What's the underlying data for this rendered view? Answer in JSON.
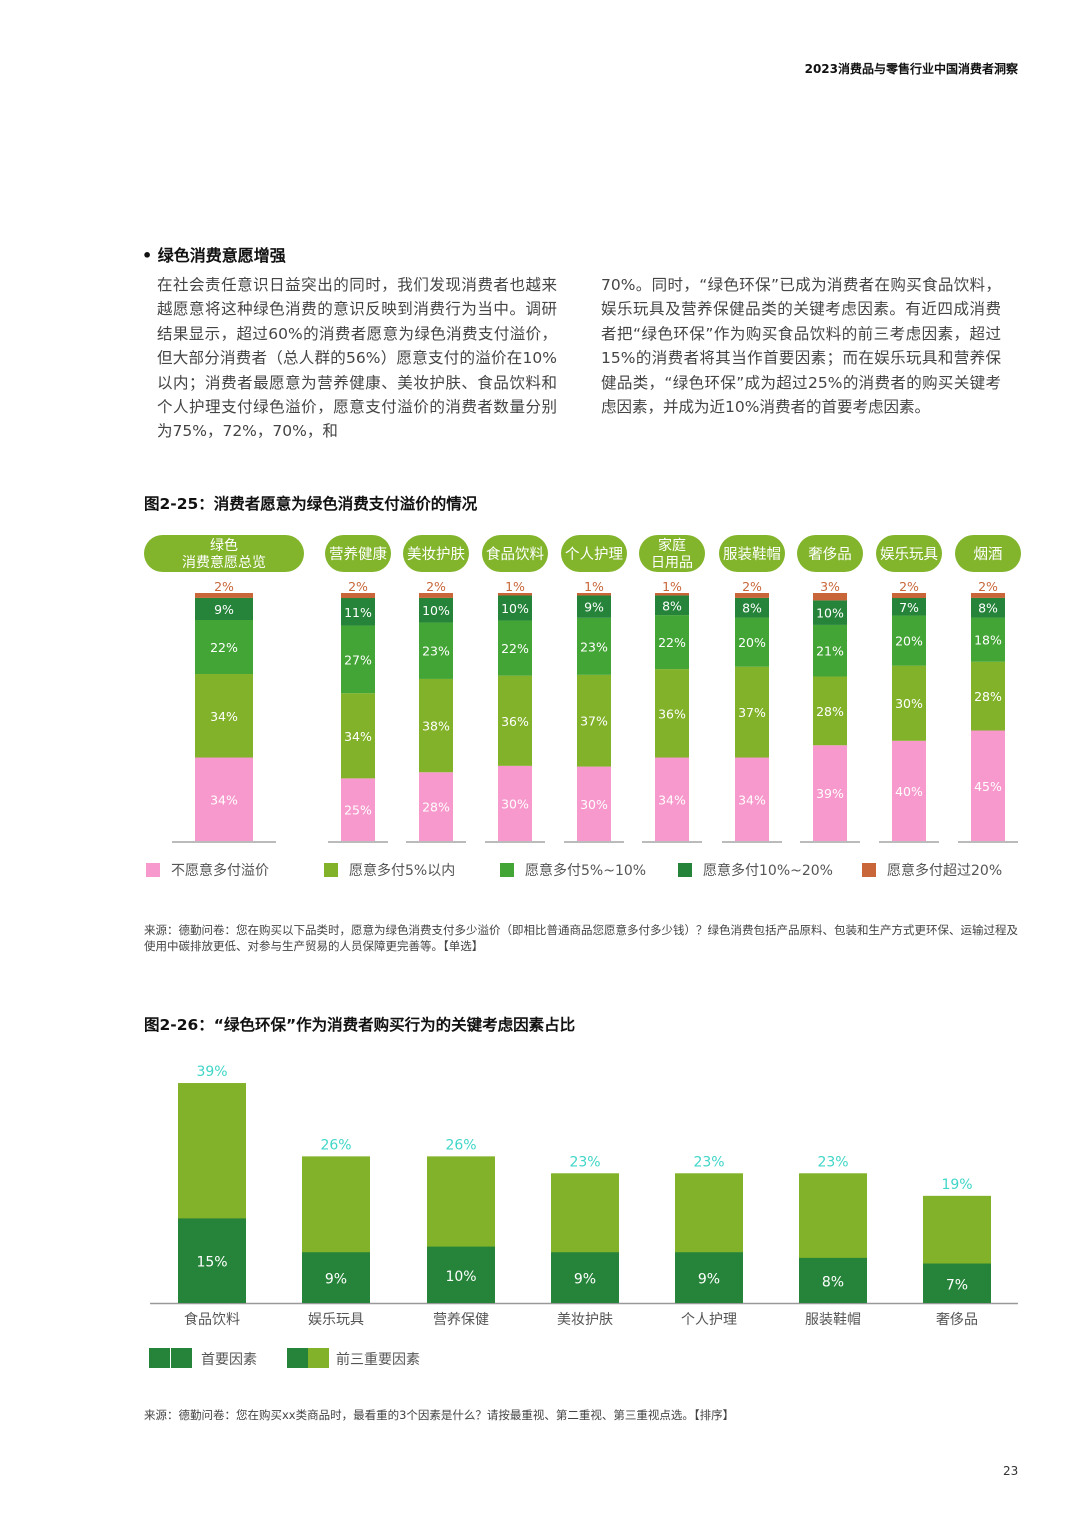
{
  "header": "2023消费品与零售行业中国消费者洞察",
  "section_title": "• 绿色消费意愿增强",
  "paragraph_left": "在社会责任意识日益突出的同时，我们发现消费者也越来越愿意将这种绿色消费的意识反映到消费行为当中。调研结果显示，超过60%的消费者愿意为绿色消费支付溢价，但大部分消费者（总人群的56%）愿意支付的溢价在10%以内；消费者最愿意为营养健康、美妆护肤、食品饮料和个人护理支付绿色溢价，愿意支付溢价的消费者数量分别为75%，72%，70%，和",
  "paragraph_right": "70%。同时，“绿色环保”已成为消费者在购买食品饮料，娱乐玩具及营养保健品类的关键考虑因素。有近四成消费者把“绿色环保”作为购买食品饮料的前三考虑因素，超过15%的消费者将其当作首要因素；而在娱乐玩具和营养保健品类，“绿色环保”成为超过25%的消费者的购买关键考虑因素，并成为近10%消费者的首要考虑因素。",
  "figure1_title": "图2-25：消费者愿意为绿色消费支付溢价的情况",
  "figure1_source": "来源：德勤问卷：您在购买以下品类时，愿意为绿色消费支付多少溢价（即相比普通商品您愿意多付多少钱）？绿色消费包括产品原料、包装和生产方式更环保、运输过程及使用中碳排放更低、对参与生产贸易的人员保障更完善等。【单选】",
  "figure2_title": "图2-26：“绿色环保”作为消费者购买行为的关键考虑因素占比",
  "figure2_source": "来源：德勤问卷：您在购买xx类商品时，最看重的3个因素是什么？请按最重视、第二重视、第三重视点选。【排序】",
  "page_number": "23",
  "chart_data": [
    {
      "type": "bar",
      "stacked": true,
      "title": "图2-25：消费者愿意为绿色消费支付溢价的情况",
      "categories": [
        "绿色消费意愿总览",
        "营养健康",
        "美妆护肤",
        "食品饮料",
        "个人护理",
        "家庭日用品",
        "服装鞋帽",
        "奢侈品",
        "娱乐玩具",
        "烟酒"
      ],
      "category_pill_color": "#82b52c",
      "legend_position": "bottom",
      "series": [
        {
          "name": "不愿意多付溢价",
          "color": "#f799cc",
          "values": [
            34,
            25,
            28,
            30,
            30,
            34,
            34,
            39,
            40,
            45
          ]
        },
        {
          "name": "愿意多付5%以内",
          "color": "#82b229",
          "values": [
            34,
            34,
            38,
            36,
            37,
            36,
            37,
            28,
            30,
            28
          ]
        },
        {
          "name": "愿意多付5%~10%",
          "color": "#43a535",
          "values": [
            22,
            27,
            23,
            22,
            23,
            22,
            20,
            21,
            20,
            18
          ]
        },
        {
          "name": "愿意多付10%~20%",
          "color": "#26843a",
          "values": [
            9,
            11,
            10,
            10,
            9,
            8,
            8,
            10,
            7,
            8
          ]
        },
        {
          "name": "愿意多付超过20%",
          "color": "#c8663a",
          "values": [
            2,
            2,
            2,
            1,
            1,
            1,
            2,
            3,
            2,
            2
          ]
        }
      ],
      "unit": "%"
    },
    {
      "type": "bar",
      "title": "图2-26：“绿色环保”作为消费者购买行为的关键考虑因素占比",
      "categories": [
        "食品饮料",
        "娱乐玩具",
        "营养保健",
        "美妆护肤",
        "个人护理",
        "服装鞋帽",
        "奢侈品"
      ],
      "legend_position": "bottom-left",
      "series": [
        {
          "name": "首要因素",
          "color": "#26843a",
          "values": [
            15,
            9,
            10,
            9,
            9,
            8,
            7
          ]
        },
        {
          "name": "前三重要因素",
          "color": "#82b229",
          "values": [
            39,
            26,
            26,
            23,
            23,
            23,
            19
          ]
        }
      ],
      "total_label_color": "#3fd6c8",
      "unit": "%"
    }
  ]
}
